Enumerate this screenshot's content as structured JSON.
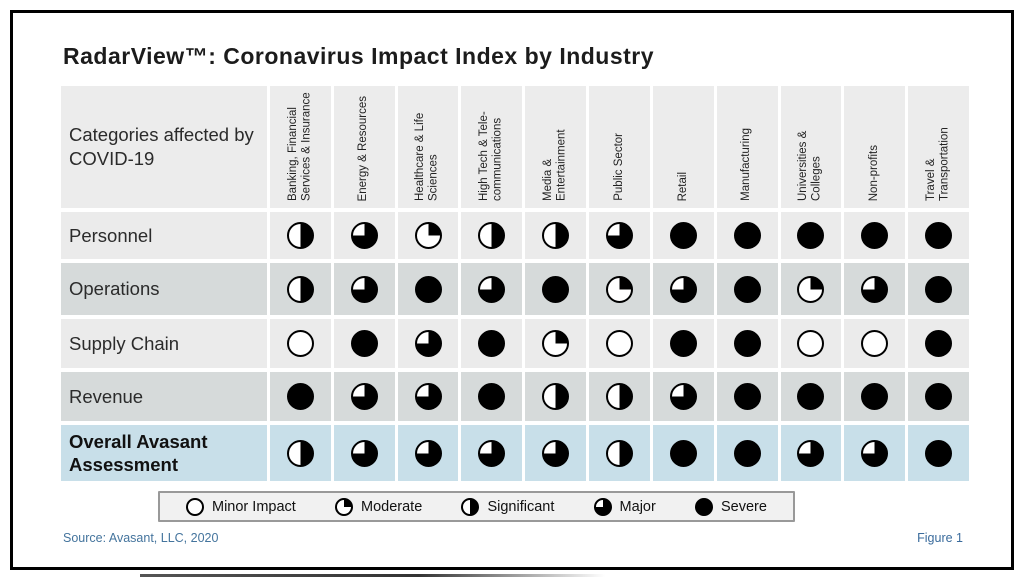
{
  "title": "RadarView™: Coronavirus Impact Index by Industry",
  "chart_data": {
    "type": "table",
    "title": "RadarView™: Coronavirus Impact Index by Industry",
    "corner_label": "Categories affected by COVID-19",
    "impact_scale": [
      "minor",
      "moderate",
      "significant",
      "major",
      "severe"
    ],
    "columns": [
      "Banking, Financial Services & Insurance",
      "Energy & Resources",
      "Healthcare & Life Sciences",
      "High Tech & Tele-communications",
      "Media & Entertainment",
      "Public Sector",
      "Retail",
      "Manufacturing",
      "Universities & Colleges",
      "Non-profits",
      "Travel & Transportation"
    ],
    "rows": [
      {
        "label": "Personnel",
        "tone": "light",
        "bold": false,
        "values": [
          "significant",
          "major",
          "moderate",
          "significant",
          "significant",
          "major",
          "severe",
          "severe",
          "severe",
          "severe",
          "severe"
        ]
      },
      {
        "label": "Operations",
        "tone": "dark",
        "bold": false,
        "values": [
          "significant",
          "major",
          "severe",
          "major",
          "severe",
          "moderate",
          "major",
          "severe",
          "moderate",
          "major",
          "severe"
        ]
      },
      {
        "label": "Supply Chain",
        "tone": "light",
        "bold": false,
        "values": [
          "minor",
          "severe",
          "major",
          "severe",
          "moderate",
          "minor",
          "severe",
          "severe",
          "minor",
          "minor",
          "severe"
        ]
      },
      {
        "label": "Revenue",
        "tone": "dark",
        "bold": false,
        "values": [
          "severe",
          "major",
          "major",
          "severe",
          "significant",
          "significant",
          "major",
          "severe",
          "severe",
          "severe",
          "severe"
        ]
      },
      {
        "label": "Overall Avasant Assessment",
        "tone": "accent",
        "bold": true,
        "values": [
          "significant",
          "major",
          "major",
          "major",
          "major",
          "significant",
          "severe",
          "severe",
          "major",
          "major",
          "severe"
        ]
      }
    ]
  },
  "legend": [
    {
      "level": "minor",
      "label": "Minor Impact"
    },
    {
      "level": "moderate",
      "label": "Moderate"
    },
    {
      "level": "significant",
      "label": "Significant"
    },
    {
      "level": "major",
      "label": "Major"
    },
    {
      "level": "severe",
      "label": "Severe"
    }
  ],
  "footer": {
    "source": "Source: Avasant, LLC, 2020",
    "figure": "Figure 1"
  },
  "colors": {
    "row_light": "#ebebeb",
    "row_dark": "#d6dada",
    "row_accent": "#c8dfe9",
    "header_bg": "#ececec",
    "ball": "#000000",
    "source_text": "#44749d",
    "figure_text": "#3a6b9c",
    "legend_border": "#999999",
    "legend_bg": "#f1f1f1",
    "frame_border": "#000000"
  }
}
